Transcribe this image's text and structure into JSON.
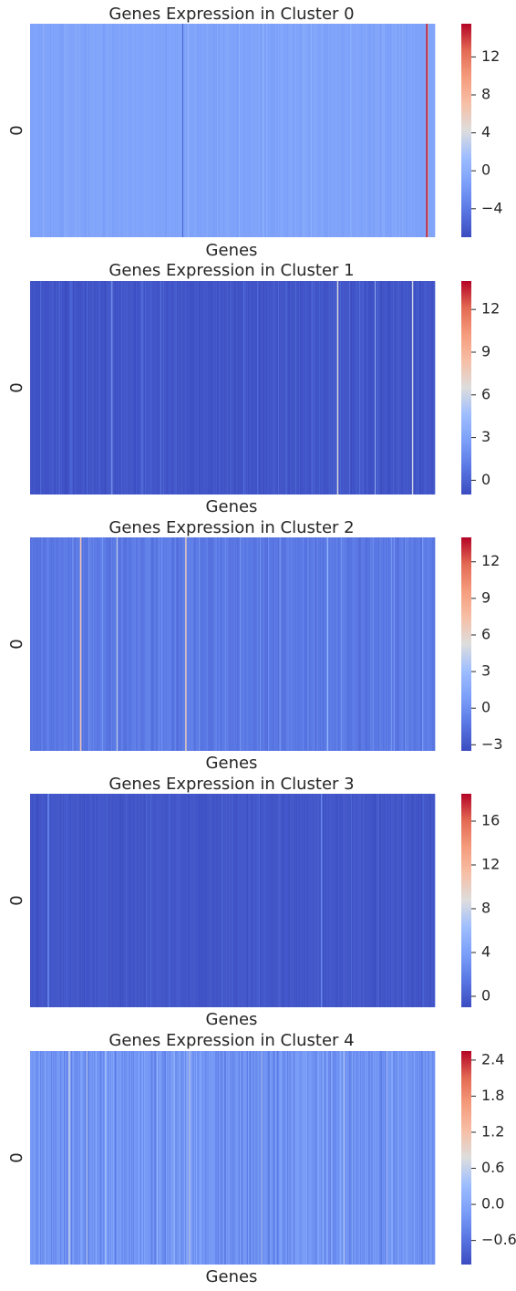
{
  "chart_data": [
    {
      "type": "heatmap",
      "title": "Genes Expression in Cluster 0",
      "xlabel": "Genes",
      "row_label": "0",
      "colorbar": {
        "vmin": -7.0,
        "vmax": 15.5,
        "ticks": [
          -4,
          0,
          4,
          8,
          12
        ]
      },
      "base_level": -1.0,
      "spread": 0.6,
      "seed": 11,
      "highlights": [
        {
          "pos": 0.378,
          "value": -7.0
        },
        {
          "pos": 0.98,
          "value": 15.0
        },
        {
          "pos": 0.982,
          "value": 10.0
        }
      ]
    },
    {
      "type": "heatmap",
      "title": "Genes Expression in Cluster 1",
      "xlabel": "Genes",
      "row_label": "0",
      "colorbar": {
        "vmin": -1.0,
        "vmax": 14.0,
        "ticks": [
          0,
          3,
          6,
          9,
          12
        ]
      },
      "base_level": -0.6,
      "spread": 0.5,
      "seed": 23,
      "highlights": [
        {
          "pos": 0.203,
          "value": 4.5
        },
        {
          "pos": 0.76,
          "value": 6.5
        },
        {
          "pos": 0.853,
          "value": 5.0
        },
        {
          "pos": 0.945,
          "value": 6.0
        }
      ]
    },
    {
      "type": "heatmap",
      "title": "Genes Expression in Cluster 2",
      "xlabel": "Genes",
      "row_label": "0",
      "colorbar": {
        "vmin": -3.5,
        "vmax": 14.0,
        "ticks": [
          -3,
          0,
          3,
          6,
          9,
          12
        ]
      },
      "base_level": -1.2,
      "spread": 0.8,
      "seed": 37,
      "highlights": [
        {
          "pos": 0.125,
          "value": 7.0
        },
        {
          "pos": 0.215,
          "value": 4.0
        },
        {
          "pos": 0.385,
          "value": 6.5
        },
        {
          "pos": 0.735,
          "value": 2.5
        }
      ]
    },
    {
      "type": "heatmap",
      "title": "Genes Expression in Cluster 3",
      "xlabel": "Genes",
      "row_label": "0",
      "colorbar": {
        "vmin": -1.0,
        "vmax": 18.5,
        "ticks": [
          0,
          4,
          8,
          12,
          16
        ]
      },
      "base_level": -0.4,
      "spread": 0.5,
      "seed": 53,
      "highlights": [
        {
          "pos": 0.045,
          "value": 3.0
        },
        {
          "pos": 0.72,
          "value": 2.5
        }
      ]
    },
    {
      "type": "heatmap",
      "title": "Genes Expression in Cluster 4",
      "xlabel": "Genes",
      "row_label": "0",
      "colorbar": {
        "vmin": -1.0,
        "vmax": 2.55,
        "ticks": [
          -0.6,
          0.0,
          0.6,
          1.2,
          1.8,
          2.4
        ]
      },
      "base_level": -0.25,
      "spread": 0.3,
      "seed": 71,
      "highlights": []
    }
  ]
}
